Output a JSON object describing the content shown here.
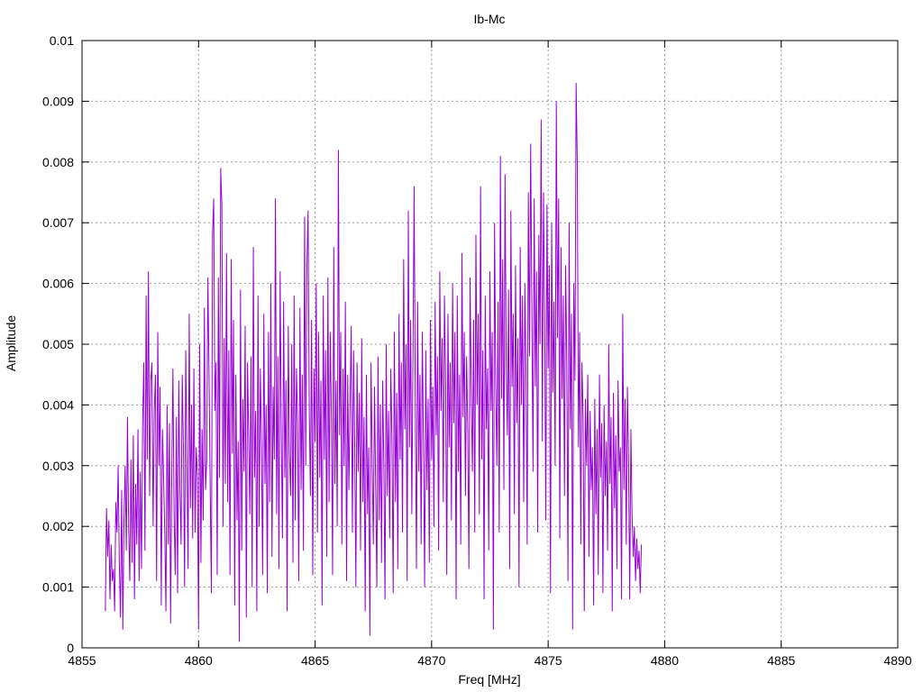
{
  "chart_data": {
    "type": "line",
    "title": "Ib-Mc",
    "xlabel": "Freq [MHz]",
    "ylabel": "Amplitude",
    "xlim": [
      4855,
      4890
    ],
    "ylim": [
      0,
      0.01
    ],
    "x_ticks": [
      4855,
      4860,
      4865,
      4870,
      4875,
      4880,
      4885,
      4890
    ],
    "x_tick_labels": [
      "4855",
      "4860",
      "4865",
      "4870",
      "4875",
      "4880",
      "4885",
      "4890"
    ],
    "y_ticks": [
      0,
      0.001,
      0.002,
      0.003,
      0.004,
      0.005,
      0.006,
      0.007,
      0.008,
      0.009,
      0.01
    ],
    "y_tick_labels": [
      "0",
      "0.001",
      "0.002",
      "0.003",
      "0.004",
      "0.005",
      "0.006",
      "0.007",
      "0.008",
      "0.009",
      "0.01"
    ],
    "grid": true,
    "series_color": "#9400d3",
    "series": [
      {
        "x_start": 4856.0,
        "x_step": 0.05,
        "values": [
          0.0006,
          0.0023,
          0.0015,
          0.0021,
          0.0008,
          0.0017,
          0.0011,
          0.0013,
          0.0006,
          0.0024,
          0.0019,
          0.003,
          0.0014,
          0.0005,
          0.0026,
          0.0003,
          0.0021,
          0.003,
          0.0016,
          0.0038,
          0.002,
          0.0011,
          0.0031,
          0.0014,
          0.0035,
          0.0008,
          0.0027,
          0.0017,
          0.0036,
          0.0011,
          0.0029,
          0.0013,
          0.0037,
          0.0047,
          0.0016,
          0.0058,
          0.0031,
          0.0062,
          0.0025,
          0.0044,
          0.0047,
          0.002,
          0.0039,
          0.0045,
          0.0011,
          0.0052,
          0.003,
          0.0043,
          0.0007,
          0.0036,
          0.0028,
          0.0019,
          0.0006,
          0.004,
          0.0017,
          0.0037,
          0.0004,
          0.0029,
          0.0046,
          0.0022,
          0.0012,
          0.0038,
          0.0009,
          0.0044,
          0.0026,
          0.0017,
          0.0045,
          0.0033,
          0.001,
          0.0049,
          0.0031,
          0.0013,
          0.0055,
          0.0023,
          0.004,
          0.0018,
          0.0046,
          0.0019,
          0.0033,
          0.0028,
          0.0003,
          0.005,
          0.0014,
          0.0036,
          0.0021,
          0.0056,
          0.0026,
          0.0031,
          0.0061,
          0.0045,
          0.0026,
          0.0009,
          0.0068,
          0.0074,
          0.0039,
          0.0047,
          0.0012,
          0.0061,
          0.0028,
          0.0079,
          0.0073,
          0.002,
          0.0051,
          0.0027,
          0.0065,
          0.0024,
          0.0049,
          0.0012,
          0.0064,
          0.0032,
          0.0054,
          0.0007,
          0.0045,
          0.0021,
          0.0034,
          0.0001,
          0.0059,
          0.0016,
          0.0041,
          0.0029,
          0.0053,
          0.0005,
          0.0047,
          0.0035,
          0.0022,
          0.0048,
          0.001,
          0.0066,
          0.0028,
          0.0039,
          0.0006,
          0.0058,
          0.002,
          0.0046,
          0.0033,
          0.0012,
          0.0055,
          0.0027,
          0.004,
          0.0009,
          0.0052,
          0.0024,
          0.006,
          0.0015,
          0.0043,
          0.0031,
          0.0074,
          0.0022,
          0.0048,
          0.0013,
          0.0062,
          0.0035,
          0.0018,
          0.0057,
          0.0028,
          0.0044,
          0.0006,
          0.0053,
          0.0032,
          0.0025,
          0.005,
          0.0014,
          0.0058,
          0.0021,
          0.0046,
          0.0037,
          0.0011,
          0.0056,
          0.0026,
          0.0045,
          0.0016,
          0.0071,
          0.003,
          0.0063,
          0.0072,
          0.0039,
          0.0025,
          0.0054,
          0.0012,
          0.0046,
          0.0034,
          0.006,
          0.0019,
          0.0052,
          0.0028,
          0.0044,
          0.0007,
          0.0058,
          0.0031,
          0.0049,
          0.0015,
          0.0061,
          0.0024,
          0.0052,
          0.0038,
          0.0012,
          0.0066,
          0.0027,
          0.0044,
          0.002,
          0.0082,
          0.0035,
          0.0052,
          0.0017,
          0.0046,
          0.003,
          0.0057,
          0.0011,
          0.0045,
          0.0026,
          0.004,
          0.0053,
          0.0019,
          0.0049,
          0.0033,
          0.001,
          0.0047,
          0.0029,
          0.0042,
          0.0016,
          0.0051,
          0.0024,
          0.0038,
          0.0006,
          0.0045,
          0.0022,
          0.0033,
          0.0002,
          0.0047,
          0.0031,
          0.0017,
          0.0043,
          0.0026,
          0.001,
          0.0048,
          0.0021,
          0.004,
          0.0014,
          0.0044,
          0.003,
          0.0008,
          0.005,
          0.0025,
          0.0039,
          0.0018,
          0.0046,
          0.0034,
          0.0009,
          0.0052,
          0.0024,
          0.0042,
          0.0013,
          0.0055,
          0.0031,
          0.0047,
          0.0019,
          0.0064,
          0.0036,
          0.005,
          0.0011,
          0.0072,
          0.0033,
          0.0054,
          0.0022,
          0.0048,
          0.0076,
          0.0039,
          0.0013,
          0.0057,
          0.0029,
          0.0045,
          0.0017,
          0.0052,
          0.0033,
          0.001,
          0.0049,
          0.0026,
          0.0041,
          0.0014,
          0.0054,
          0.0031,
          0.0043,
          0.002,
          0.0057,
          0.0035,
          0.0048,
          0.0016,
          0.0062,
          0.0039,
          0.0051,
          0.0024,
          0.0058,
          0.0044,
          0.0012,
          0.0055,
          0.0033,
          0.0047,
          0.0021,
          0.006,
          0.0037,
          0.0052,
          0.0008,
          0.0058,
          0.0029,
          0.0045,
          0.0017,
          0.0065,
          0.0038,
          0.0052,
          0.0025,
          0.0048,
          0.0036,
          0.0013,
          0.0061,
          0.0042,
          0.0029,
          0.0054,
          0.0019,
          0.0068,
          0.004,
          0.0055,
          0.0022,
          0.0076,
          0.0031,
          0.0049,
          0.0008,
          0.0058,
          0.0036,
          0.0046,
          0.0016,
          0.0062,
          0.0039,
          0.0052,
          0.0003,
          0.007,
          0.0044,
          0.003,
          0.0057,
          0.0019,
          0.0081,
          0.0041,
          0.0064,
          0.0026,
          0.0078,
          0.0047,
          0.0035,
          0.0059,
          0.0013,
          0.0072,
          0.0043,
          0.0055,
          0.0022,
          0.0063,
          0.0037,
          0.0051,
          0.001,
          0.0066,
          0.004,
          0.0058,
          0.0024,
          0.006,
          0.0045,
          0.0017,
          0.0075,
          0.0048,
          0.0083,
          0.0056,
          0.0029,
          0.0074,
          0.0043,
          0.0062,
          0.0019,
          0.0068,
          0.005,
          0.0087,
          0.0034,
          0.0075,
          0.0055,
          0.0021,
          0.0073,
          0.0046,
          0.0063,
          0.0009,
          0.007,
          0.0042,
          0.0057,
          0.003,
          0.009,
          0.0051,
          0.0074,
          0.0018,
          0.0066,
          0.0041,
          0.0058,
          0.0025,
          0.0063,
          0.0047,
          0.0011,
          0.007,
          0.0036,
          0.0055,
          0.0003,
          0.006,
          0.0044,
          0.0093,
          0.008,
          0.0033,
          0.0052,
          0.0017,
          0.0047,
          0.0038,
          0.0006,
          0.0041,
          0.003,
          0.0045,
          0.0015,
          0.0039,
          0.0026,
          0.0033,
          0.0007,
          0.0041,
          0.0022,
          0.0036,
          0.0012,
          0.0045,
          0.0028,
          0.0037,
          0.0009,
          0.004,
          0.0025,
          0.0034,
          0.0016,
          0.005,
          0.0027,
          0.0038,
          0.0006,
          0.0042,
          0.0023,
          0.0035,
          0.0013,
          0.0044,
          0.0029,
          0.0033,
          0.0008,
          0.0055,
          0.0026,
          0.0041,
          0.0017,
          0.0043,
          0.0031,
          0.0008,
          0.0036,
          0.0022,
          0.0015,
          0.002,
          0.0011,
          0.0018,
          0.0013,
          0.0016,
          0.0009,
          0.0017
        ]
      }
    ]
  }
}
